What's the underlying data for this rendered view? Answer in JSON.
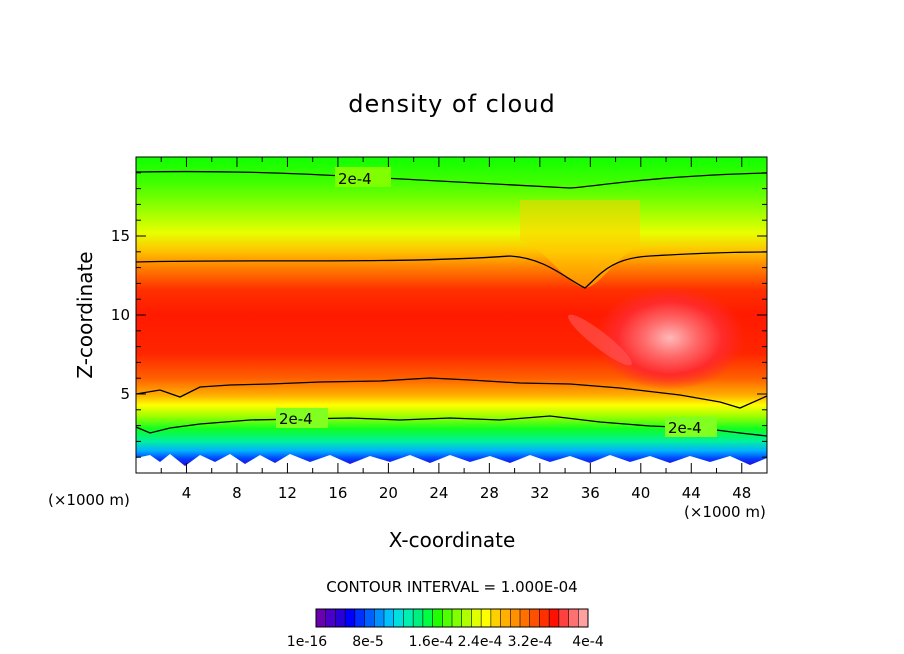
{
  "chart_data": {
    "type": "contour",
    "title": "density of cloud",
    "xlabel": "X-coordinate",
    "ylabel": "Z-coordinate",
    "x_unit_label": "(×1000 m)",
    "x_unit_label_right": "(×1000 m)",
    "xlim": [
      0,
      50
    ],
    "ylim": [
      0,
      20
    ],
    "x_ticks": [
      4,
      8,
      12,
      16,
      20,
      24,
      28,
      32,
      36,
      40,
      44,
      48
    ],
    "y_ticks": [
      5,
      10,
      15
    ],
    "contour_labels": [
      {
        "text": "2e-4",
        "x": 17.6,
        "z": 18.7
      },
      {
        "text": "2e-4",
        "x": 13.3,
        "z": 3.4
      },
      {
        "text": "2e-4",
        "x": 43.7,
        "z": 2.9
      }
    ],
    "contour_interval_label": "CONTOUR INTERVAL = 1.000E-04",
    "colorbar": {
      "tick_labels": [
        "1e-16",
        "8e-5",
        "1.6e-4",
        "2.4e-4",
        "3.2e-4",
        "4e-4"
      ],
      "colors": [
        "#6a00b0",
        "#4a00c8",
        "#2a00d8",
        "#0000ff",
        "#0030ff",
        "#0060ff",
        "#0090ff",
        "#00c0ff",
        "#00e0e0",
        "#00f0b0",
        "#00f080",
        "#00ff40",
        "#20ff00",
        "#50ff00",
        "#80ff00",
        "#b0ff00",
        "#e0ff00",
        "#ffff00",
        "#ffd000",
        "#ffb000",
        "#ff9000",
        "#ff7000",
        "#ff5000",
        "#ff3000",
        "#ff1000",
        "#ff4040",
        "#ff7070",
        "#ffa0a0"
      ]
    }
  }
}
